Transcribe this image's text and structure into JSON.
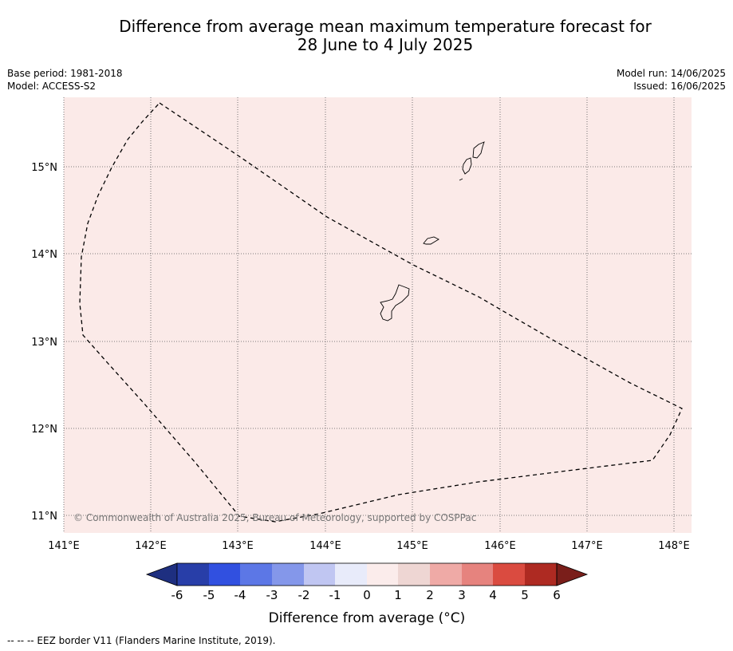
{
  "header": {
    "title_line1": "Difference from average mean maximum temperature forecast for",
    "title_line2": "28 June to 4 July 2025",
    "base_period": "Base period: 1981-2018",
    "model": "Model: ACCESS-S2",
    "model_run": "Model run: 14/06/2025",
    "issued": "Issued: 16/06/2025"
  },
  "map": {
    "background_color": "#fbeae8",
    "lon_ticks": [
      "141°E",
      "142°E",
      "143°E",
      "144°E",
      "145°E",
      "146°E",
      "147°E",
      "148°E"
    ],
    "lat_ticks": [
      "15°N",
      "14°N",
      "13°N",
      "12°N",
      "11°N"
    ],
    "copyright": "© Commonwealth of Australia 2025, Bureau of Meteorology, supported by COSPPac"
  },
  "colorbar": {
    "ticks": [
      "-6",
      "-5",
      "-4",
      "-3",
      "-2",
      "-1",
      "0",
      "1",
      "2",
      "3",
      "4",
      "5",
      "6"
    ],
    "colors": [
      "#283ea8",
      "#3150e0",
      "#5c77e6",
      "#8497ea",
      "#c0c6f2",
      "#e8ebfa",
      "#fbeceb",
      "#eed6d3",
      "#efaaa6",
      "#e6837e",
      "#da4b40",
      "#ae2a22"
    ],
    "low_extend_color": "#1e2f80",
    "high_extend_color": "#7a1e1a",
    "label": "Difference from average (°C)"
  },
  "footer": {
    "eez_note": "-- -- -- EEZ border V11 (Flanders Marine Institute, 2019)."
  }
}
